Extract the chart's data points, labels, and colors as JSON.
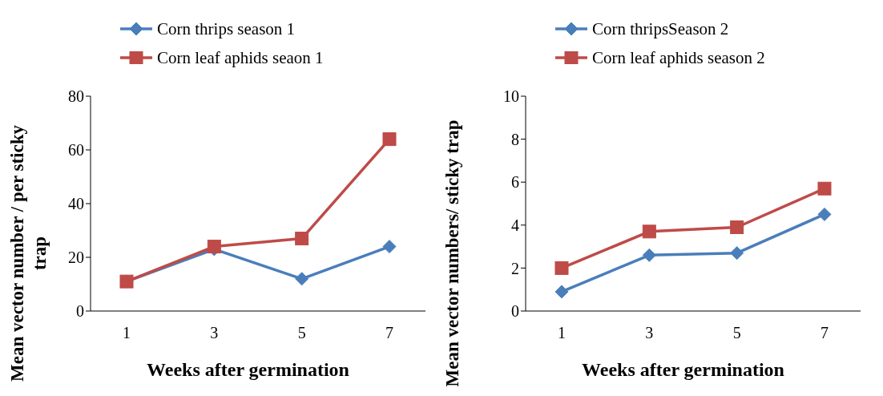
{
  "chart_data": [
    {
      "type": "line",
      "categories": [
        "1",
        "3",
        "5",
        "7"
      ],
      "xlabel": "Weeks after germination",
      "ylabel": "Mean vector number / per sticky trap",
      "ylim": [
        0,
        80
      ],
      "yticks": [
        0,
        20,
        40,
        60,
        80
      ],
      "grid": false,
      "legend": "top left",
      "series": [
        {
          "name": "Corn thrips season 1",
          "color": "#4a7ebb",
          "marker": "diamond",
          "values": [
            11,
            23,
            12,
            24
          ]
        },
        {
          "name": "Corn leaf aphids seaon 1",
          "color": "#be4b48",
          "marker": "square",
          "values": [
            11,
            24,
            27,
            64
          ]
        }
      ]
    },
    {
      "type": "line",
      "categories": [
        "1",
        "3",
        "5",
        "7"
      ],
      "xlabel": "Weeks after germination",
      "ylabel": "Mean vector numbers/ sticky trap",
      "ylim": [
        0,
        10
      ],
      "yticks": [
        0,
        2,
        4,
        6,
        8,
        10
      ],
      "grid": false,
      "legend": "top left",
      "series": [
        {
          "name": "Corn thripsSeason 2",
          "color": "#4a7ebb",
          "marker": "diamond",
          "values": [
            0.9,
            2.6,
            2.7,
            4.5
          ]
        },
        {
          "name": "Corn leaf aphids season 2",
          "color": "#be4b48",
          "marker": "square",
          "values": [
            2.0,
            3.7,
            3.9,
            5.7
          ]
        }
      ]
    }
  ]
}
